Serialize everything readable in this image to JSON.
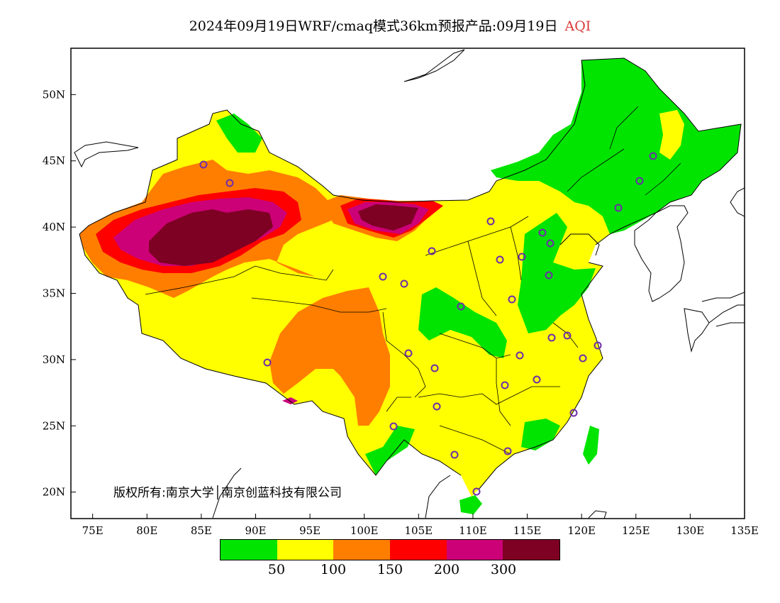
{
  "header": {
    "title": "2024年09月19日WRF/cmaq模式36km预报产品:09月19日",
    "variable": "AQI"
  },
  "map": {
    "lat_labels": [
      "50N",
      "45N",
      "40N",
      "35N",
      "30N",
      "25N",
      "20N"
    ],
    "lon_labels": [
      "75E",
      "80E",
      "85E",
      "90E",
      "95E",
      "100E",
      "105E",
      "110E",
      "115E",
      "120E",
      "125E",
      "130E",
      "135E"
    ],
    "lon_range": [
      73,
      135
    ],
    "lat_range": [
      18,
      53.5
    ]
  },
  "copyright": "版权所有:南京大学│南京创蓝科技有限公司",
  "legend": {
    "colors": [
      "#00e400",
      "#ffff00",
      "#ff7e00",
      "#ff0000",
      "#cc0077",
      "#7e0023"
    ],
    "labels": [
      "50",
      "100",
      "150",
      "200",
      "300"
    ]
  }
}
